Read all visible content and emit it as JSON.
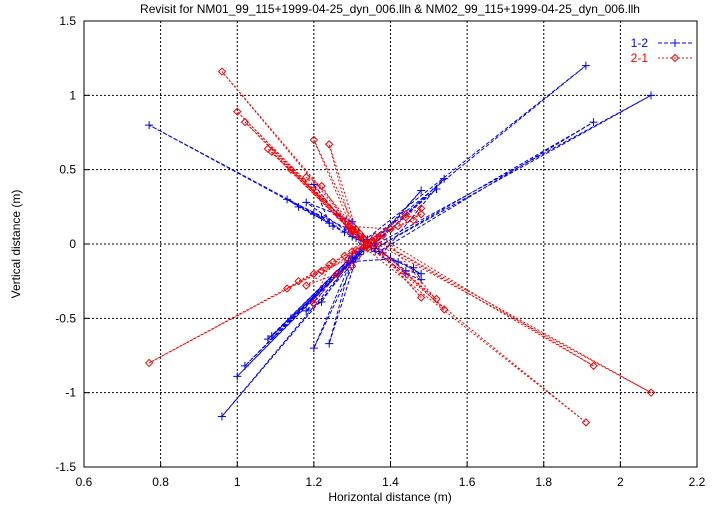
{
  "chart_data": {
    "type": "line",
    "title": "Revisit for NM01_99_115+1999-04-25_dyn_006.llh & NM02_99_115+1999-04-25_dyn_006.llh",
    "xlabel": "Horizontal distance (m)",
    "ylabel": "Vertical distance (m)",
    "xlim": [
      0.6,
      2.2
    ],
    "ylim": [
      -1.5,
      1.5
    ],
    "xticks": [
      0.6,
      0.8,
      1,
      1.2,
      1.4,
      1.6,
      1.8,
      2,
      2.2
    ],
    "xtick_labels": [
      "0.6",
      "0.8",
      "1",
      "1.2",
      "1.4",
      "1.6",
      "1.8",
      "2",
      "2.2"
    ],
    "yticks": [
      -1.5,
      -1,
      -0.5,
      0,
      0.5,
      1,
      1.5
    ],
    "ytick_labels": [
      "-1.5",
      "-1",
      "-0.5",
      "0",
      "0.5",
      "1",
      "1.5"
    ],
    "grid": true,
    "legend_position": "top-right",
    "series": [
      {
        "name": "1-2",
        "color": "#0000ff",
        "marker": "plus",
        "line": "dashed",
        "points": [
          [
            1.33,
            0.02
          ],
          [
            1.91,
            1.2
          ],
          [
            1.34,
            0.01
          ],
          [
            1.3,
            0.05
          ],
          [
            1.25,
            0.12
          ],
          [
            1.2,
            0.2
          ],
          [
            0.77,
            0.8
          ],
          [
            1.22,
            0.18
          ],
          [
            1.28,
            0.08
          ],
          [
            1.35,
            -0.02
          ],
          [
            2.08,
            1.0
          ],
          [
            1.36,
            -0.03
          ],
          [
            1.93,
            0.82
          ],
          [
            1.37,
            -0.05
          ],
          [
            1.42,
            -0.12
          ],
          [
            1.48,
            -0.2
          ],
          [
            1.44,
            -0.18
          ],
          [
            1.38,
            -0.06
          ],
          [
            1.54,
            0.44
          ],
          [
            1.36,
            0.0
          ],
          [
            1.48,
            0.36
          ],
          [
            1.35,
            -0.01
          ],
          [
            1.52,
            0.37
          ],
          [
            1.34,
            0.0
          ],
          [
            1.29,
            0.1
          ],
          [
            1.13,
            0.3
          ],
          [
            1.16,
            0.25
          ],
          [
            1.24,
            0.14
          ],
          [
            1.2,
            0.4
          ],
          [
            1.31,
            0.04
          ],
          [
            1.33,
            -0.04
          ],
          [
            0.96,
            -1.16
          ],
          [
            1.32,
            -0.05
          ],
          [
            1.0,
            -0.89
          ],
          [
            1.33,
            -0.03
          ],
          [
            1.02,
            -0.82
          ],
          [
            1.31,
            -0.06
          ],
          [
            1.08,
            -0.64
          ],
          [
            1.3,
            -0.08
          ],
          [
            1.09,
            -0.62
          ],
          [
            1.32,
            -0.07
          ],
          [
            1.14,
            -0.5
          ],
          [
            1.3,
            -0.1
          ],
          [
            1.2,
            -0.7
          ],
          [
            1.31,
            -0.1
          ],
          [
            1.24,
            -0.67
          ],
          [
            1.3,
            -0.09
          ],
          [
            1.22,
            -0.39
          ],
          [
            1.18,
            -0.45
          ],
          [
            1.29,
            -0.12
          ],
          [
            1.4,
            -0.1
          ],
          [
            1.46,
            -0.16
          ],
          [
            1.48,
            -0.24
          ],
          [
            1.44,
            -0.2
          ],
          [
            1.36,
            -0.05
          ],
          [
            1.18,
            0.28
          ],
          [
            1.26,
            0.2
          ],
          [
            1.3,
            0.15
          ],
          [
            1.34,
            0.03
          ]
        ]
      },
      {
        "name": "2-1",
        "color": "#ff0000",
        "marker": "diamond",
        "line": "dotted",
        "points": [
          [
            1.33,
            -0.02
          ],
          [
            1.91,
            -1.2
          ],
          [
            1.34,
            -0.01
          ],
          [
            1.3,
            -0.05
          ],
          [
            1.25,
            -0.12
          ],
          [
            1.2,
            -0.2
          ],
          [
            0.77,
            -0.8
          ],
          [
            1.22,
            -0.18
          ],
          [
            1.28,
            -0.08
          ],
          [
            1.35,
            0.02
          ],
          [
            2.08,
            -1.0
          ],
          [
            1.36,
            0.03
          ],
          [
            1.93,
            -0.82
          ],
          [
            1.37,
            0.05
          ],
          [
            1.42,
            0.12
          ],
          [
            1.48,
            0.2
          ],
          [
            1.44,
            0.18
          ],
          [
            1.38,
            0.06
          ],
          [
            1.54,
            -0.44
          ],
          [
            1.36,
            0.0
          ],
          [
            1.48,
            -0.36
          ],
          [
            1.35,
            0.01
          ],
          [
            1.52,
            -0.37
          ],
          [
            1.34,
            0.0
          ],
          [
            1.29,
            -0.1
          ],
          [
            1.13,
            -0.3
          ],
          [
            1.16,
            -0.25
          ],
          [
            1.24,
            -0.14
          ],
          [
            1.2,
            -0.4
          ],
          [
            1.31,
            -0.04
          ],
          [
            1.33,
            0.04
          ],
          [
            0.96,
            1.16
          ],
          [
            1.32,
            0.05
          ],
          [
            1.0,
            0.89
          ],
          [
            1.33,
            0.03
          ],
          [
            1.02,
            0.82
          ],
          [
            1.31,
            0.06
          ],
          [
            1.08,
            0.64
          ],
          [
            1.3,
            0.08
          ],
          [
            1.09,
            0.62
          ],
          [
            1.32,
            0.07
          ],
          [
            1.14,
            0.5
          ],
          [
            1.3,
            0.1
          ],
          [
            1.2,
            0.7
          ],
          [
            1.31,
            0.1
          ],
          [
            1.24,
            0.67
          ],
          [
            1.3,
            0.09
          ],
          [
            1.22,
            0.39
          ],
          [
            1.18,
            0.45
          ],
          [
            1.29,
            0.12
          ],
          [
            1.4,
            0.1
          ],
          [
            1.46,
            0.16
          ],
          [
            1.48,
            0.24
          ],
          [
            1.44,
            0.2
          ],
          [
            1.36,
            0.05
          ],
          [
            1.18,
            -0.28
          ],
          [
            1.26,
            -0.2
          ],
          [
            1.3,
            -0.15
          ],
          [
            1.34,
            -0.03
          ]
        ]
      }
    ]
  }
}
